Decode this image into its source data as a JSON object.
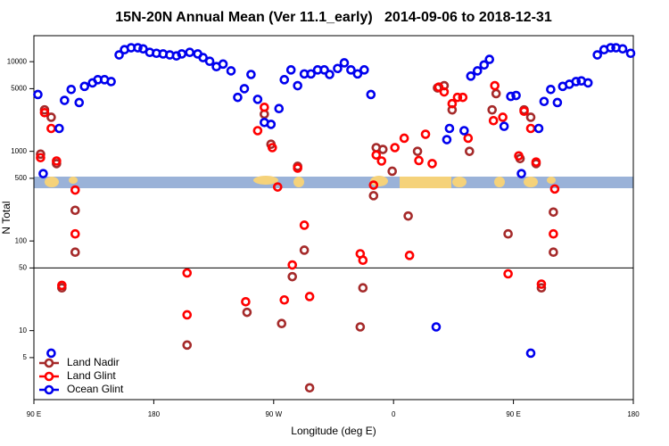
{
  "chart_data": {
    "type": "scatter",
    "title": "15N-20N Annual Mean (Ver 11.1_early)   2014-09-06 to 2018-12-31",
    "xlabel": "Longitude (deg E)",
    "ylabel": "N Total",
    "xlim": [
      90,
      540
    ],
    "xticks": [
      {
        "value": 90,
        "label": "90 E"
      },
      180,
      {
        "value": 270,
        "label": "90 W"
      },
      {
        "value": 360,
        "label": "0"
      },
      {
        "value": 450,
        "label": "90 E"
      },
      {
        "value": 540,
        "label": "180"
      }
    ],
    "ylim": [
      1.7,
      19500
    ],
    "ylog": true,
    "yticks": [
      5,
      10,
      50,
      100,
      500,
      1000,
      5000,
      10000
    ],
    "hlines": [
      50
    ],
    "legend": "lower left",
    "series": [
      {
        "name": "Land Nadir",
        "color": "#a52a2a",
        "x": [
          95,
          98,
          103,
          107,
          111,
          121,
          121,
          205,
          250,
          263,
          268,
          276,
          284,
          288,
          293,
          297,
          335,
          337,
          345,
          347,
          352,
          359,
          371,
          378,
          393,
          398,
          404,
          417,
          434,
          437,
          446,
          455,
          458,
          463,
          467,
          471,
          480,
          480
        ],
        "values": [
          930,
          2900,
          2400,
          730,
          30,
          220,
          75,
          6.9,
          16,
          2600,
          1200,
          12,
          40,
          680,
          79,
          2.3,
          11,
          30,
          320,
          1100,
          1050,
          600,
          190,
          1000,
          5100,
          5400,
          2900,
          1000,
          2900,
          4400,
          120,
          830,
          2900,
          2400,
          730,
          30,
          210,
          75
        ]
      },
      {
        "name": "Land Glint",
        "color": "#ff0000",
        "x": [
          95,
          98,
          103,
          107,
          111,
          121,
          121,
          205,
          205,
          249,
          258,
          263,
          269,
          273,
          278,
          284,
          288,
          293,
          297,
          335,
          337,
          345,
          347,
          351,
          361,
          368,
          372,
          379,
          384,
          389,
          394,
          398,
          404,
          408,
          412,
          416,
          436,
          435,
          442,
          446,
          454,
          458,
          463,
          467,
          471,
          481,
          480
        ],
        "values": [
          850,
          2700,
          1800,
          780,
          32,
          370,
          120,
          44,
          15,
          21,
          1700,
          3100,
          1100,
          400,
          22,
          54,
          650,
          150,
          24,
          72,
          61,
          420,
          910,
          780,
          1100,
          1400,
          69,
          790,
          1550,
          730,
          5200,
          4600,
          3400,
          4000,
          4000,
          1400,
          5400,
          2200,
          2400,
          43,
          890,
          2800,
          1800,
          760,
          33,
          380,
          120
        ]
      },
      {
        "name": "Ocean Glint",
        "color": "#0000ee",
        "x": [
          93,
          97,
          103,
          109,
          113,
          118,
          124,
          128,
          134,
          138,
          143,
          148,
          154,
          158,
          163,
          168,
          172,
          177,
          182,
          187,
          192,
          197,
          201,
          207,
          213,
          217,
          222,
          227,
          232,
          238,
          243,
          248,
          253,
          258,
          263,
          268,
          274,
          278,
          283,
          288,
          293,
          298,
          303,
          308,
          312,
          318,
          323,
          328,
          333,
          338,
          343,
          392,
          400,
          402,
          413,
          418,
          423,
          428,
          432,
          443,
          448,
          452,
          456,
          463,
          469,
          473,
          478,
          483,
          487,
          492,
          497,
          501,
          506,
          513,
          518,
          523,
          527,
          532,
          538
        ],
        "values": [
          4300,
          564,
          5.6,
          1800,
          3700,
          4900,
          3500,
          5300,
          5800,
          6300,
          6300,
          6000,
          11900,
          13600,
          14300,
          14300,
          13900,
          12700,
          12400,
          12200,
          11900,
          11600,
          12200,
          12700,
          12200,
          11100,
          10100,
          8800,
          9400,
          7900,
          4000,
          5000,
          7200,
          3800,
          2100,
          2000,
          3000,
          6300,
          8100,
          5400,
          7300,
          7300,
          8100,
          8100,
          7200,
          8400,
          9700,
          8100,
          7300,
          8100,
          4300,
          11,
          1350,
          1800,
          1700,
          6900,
          7900,
          9200,
          10600,
          1900,
          4100,
          4200,
          564,
          5.6,
          1800,
          3600,
          4900,
          3500,
          5300,
          5600,
          6000,
          6100,
          5800,
          11900,
          13600,
          14300,
          14300,
          13900,
          12400
        ]
      }
    ]
  }
}
